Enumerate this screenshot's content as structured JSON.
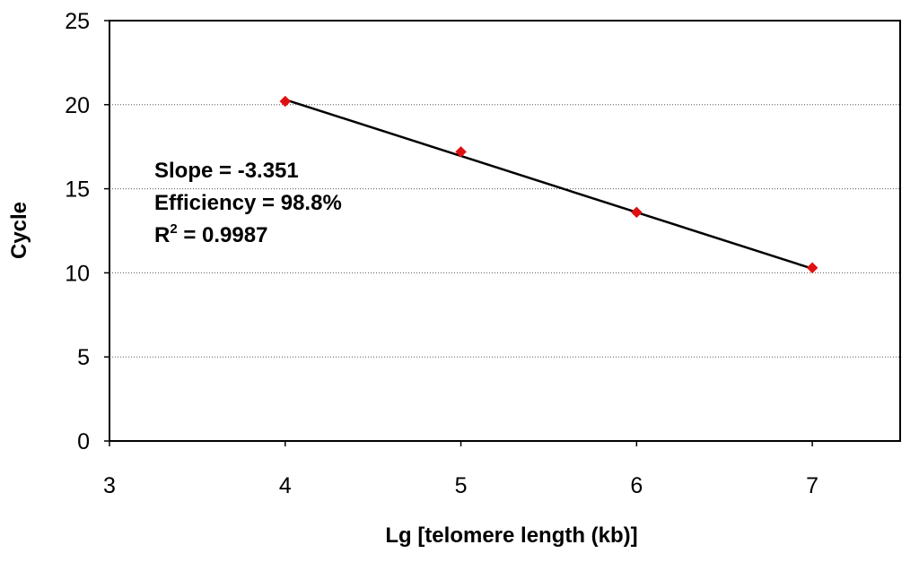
{
  "chart_data": {
    "type": "scatter",
    "title": "",
    "xlabel": "Lg [telomere length (kb)]",
    "ylabel": "Cycle",
    "xlim": [
      3,
      7.5
    ],
    "ylim": [
      0,
      25
    ],
    "x_ticks": [
      "3",
      "4",
      "5",
      "6",
      "7"
    ],
    "y_ticks": [
      "0",
      "5",
      "10",
      "15",
      "20",
      "25"
    ],
    "grid": "horizontal-dotted",
    "legend": "none",
    "series": [
      {
        "x": [
          4,
          5,
          6,
          7
        ],
        "y": [
          20.2,
          17.2,
          13.6,
          10.3
        ],
        "marker": "diamond",
        "color": "#e01010"
      }
    ],
    "trendline": {
      "x": [
        4,
        7
      ],
      "y": [
        20.3,
        10.25
      ],
      "color": "#000000"
    },
    "annotations": {
      "slope": "Slope = -3.351",
      "efficiency": "Efficiency = 98.8%",
      "r2_prefix": "R",
      "r2_sup": "2",
      "r2_value": " = 0.9987"
    }
  }
}
